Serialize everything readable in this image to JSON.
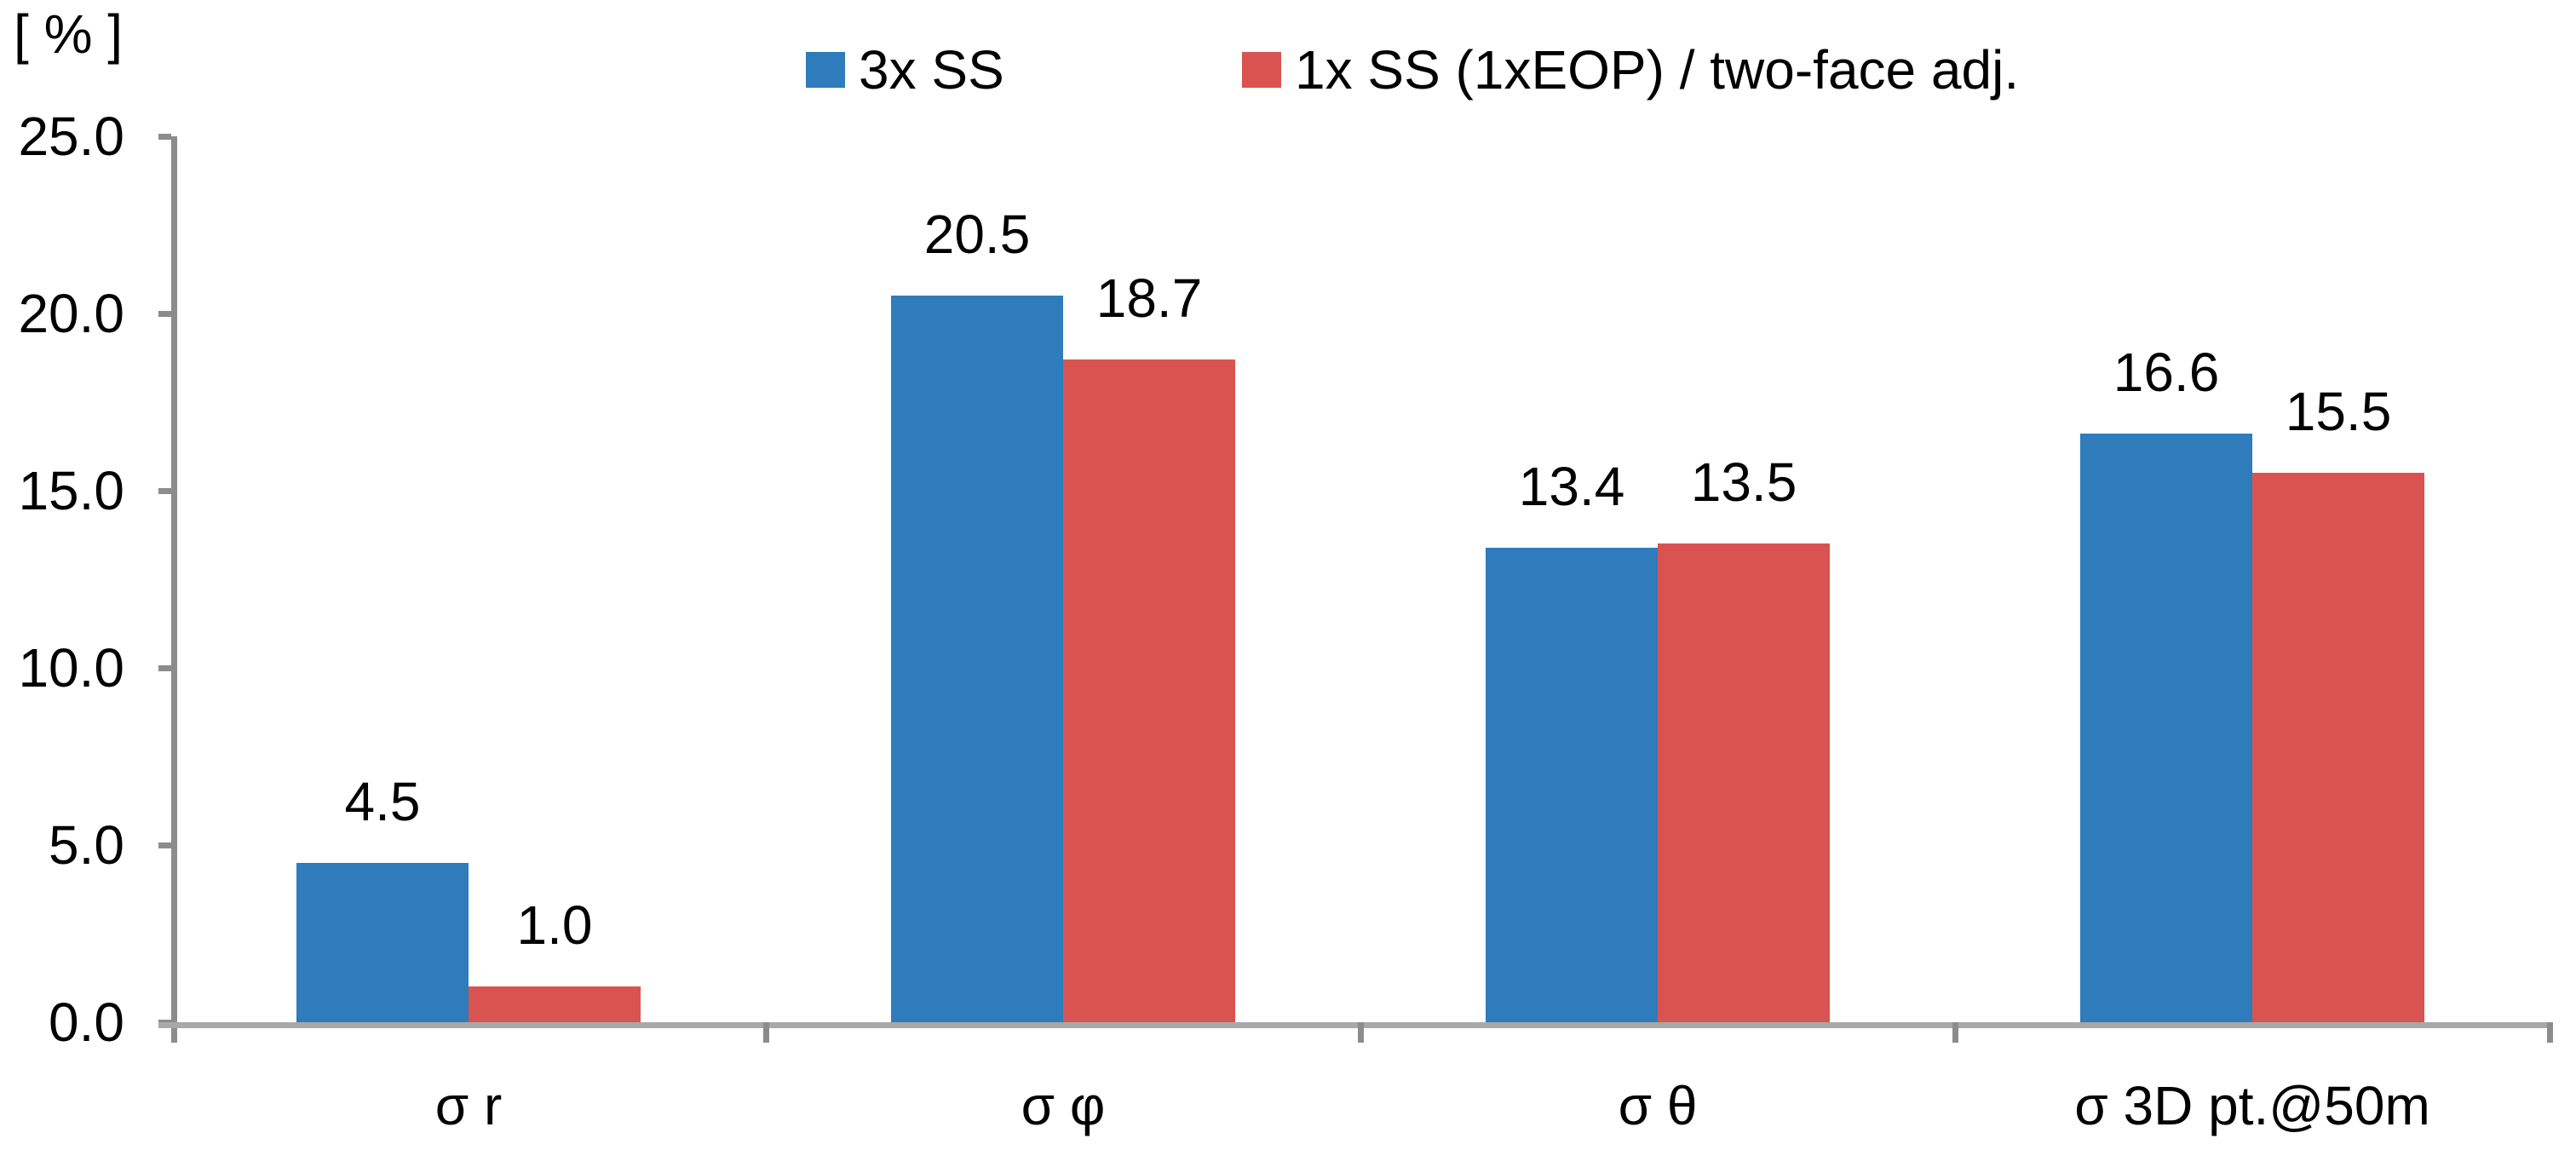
{
  "chart_data": {
    "type": "bar",
    "unit_label": "[ % ]",
    "categories": [
      "σ r",
      "σ φ",
      "σ θ",
      "σ 3D pt.@50m"
    ],
    "series": [
      {
        "name": "3x SS",
        "color": "#2e7cbb",
        "values": [
          4.5,
          20.5,
          13.4,
          16.6
        ],
        "labels": [
          "4.5",
          "20.5",
          "13.4",
          "16.6"
        ]
      },
      {
        "name": "1x SS (1xEOP) / two-face adj.",
        "color": "#d95351",
        "values": [
          1.0,
          18.7,
          13.5,
          15.5
        ],
        "labels": [
          "1.0",
          "18.7",
          "13.5",
          "15.5"
        ]
      }
    ],
    "ylim": [
      0,
      25
    ],
    "yticks": [
      "0.0",
      "5.0",
      "10.0",
      "15.0",
      "20.0",
      "25.0"
    ],
    "grid": false,
    "legend_position": "top",
    "colors": {
      "axis_vertical": "#8c8c8c",
      "axis_horizontal": "#a8a8a8",
      "background": "#ffffff"
    }
  }
}
